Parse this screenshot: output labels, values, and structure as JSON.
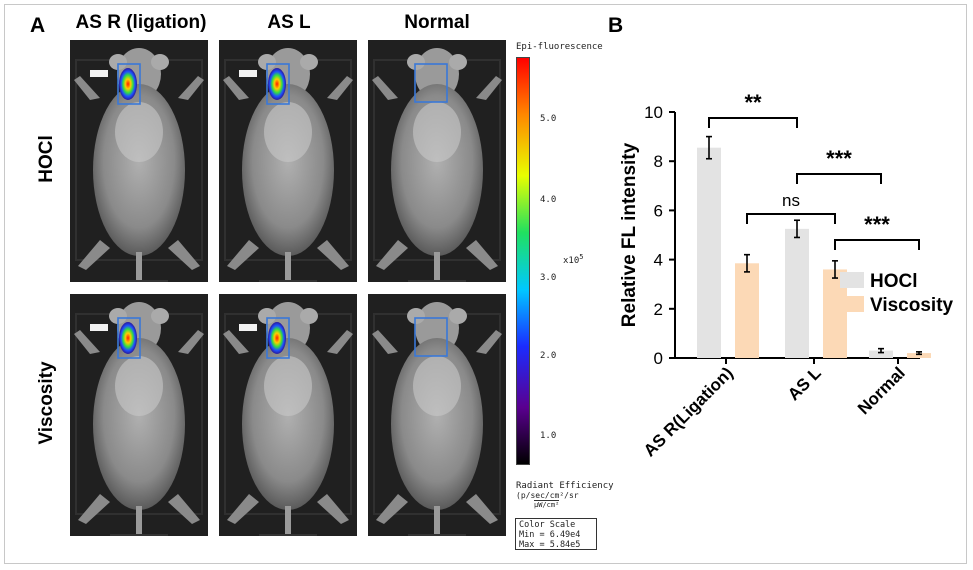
{
  "panels": {
    "a": "A",
    "b": "B"
  },
  "imaging": {
    "columns": [
      "AS R (ligation)",
      "AS L",
      "Normal"
    ],
    "rows": [
      "HOCl",
      "Viscosity"
    ]
  },
  "colorbar": {
    "title": "Epi-fluorescence",
    "ticks": [
      "5.0",
      "4.0",
      "3.0",
      "2.0",
      "1.0"
    ],
    "exponent": "x10",
    "exponent_power": "5",
    "unit_title": "Radiant Efficiency",
    "unit_line1": "(p/sec/cm²/sr",
    "unit_line2": "μW/cm²",
    "scale_title": "Color Scale",
    "scale_min": "Min = 6.49e4",
    "scale_max": "Max = 5.84e5",
    "colors": [
      "#000000",
      "#5a0090",
      "#1b2cff",
      "#00c8ff",
      "#20e060",
      "#e8ff00",
      "#ff8800",
      "#ff0000"
    ]
  },
  "chart_data": {
    "type": "bar",
    "title": "",
    "xlabel": "",
    "ylabel": "Relative FL intensity",
    "ylim": [
      0,
      10
    ],
    "yticks": [
      "0",
      "2",
      "4",
      "6",
      "8",
      "10"
    ],
    "categories": [
      "AS R(Ligation)",
      "AS L",
      "Normal"
    ],
    "series": [
      {
        "name": "HOCl",
        "color": "#e3e3e3",
        "values": [
          8.55,
          5.25,
          0.3
        ],
        "errors": [
          0.45,
          0.35,
          0.08
        ]
      },
      {
        "name": "Viscosity",
        "color": "#fcd9b6",
        "values": [
          3.85,
          3.6,
          0.2
        ],
        "errors": [
          0.35,
          0.35,
          0.05
        ]
      }
    ],
    "legend": "right",
    "annotations": [
      "**",
      "ns",
      "***",
      "***"
    ]
  }
}
